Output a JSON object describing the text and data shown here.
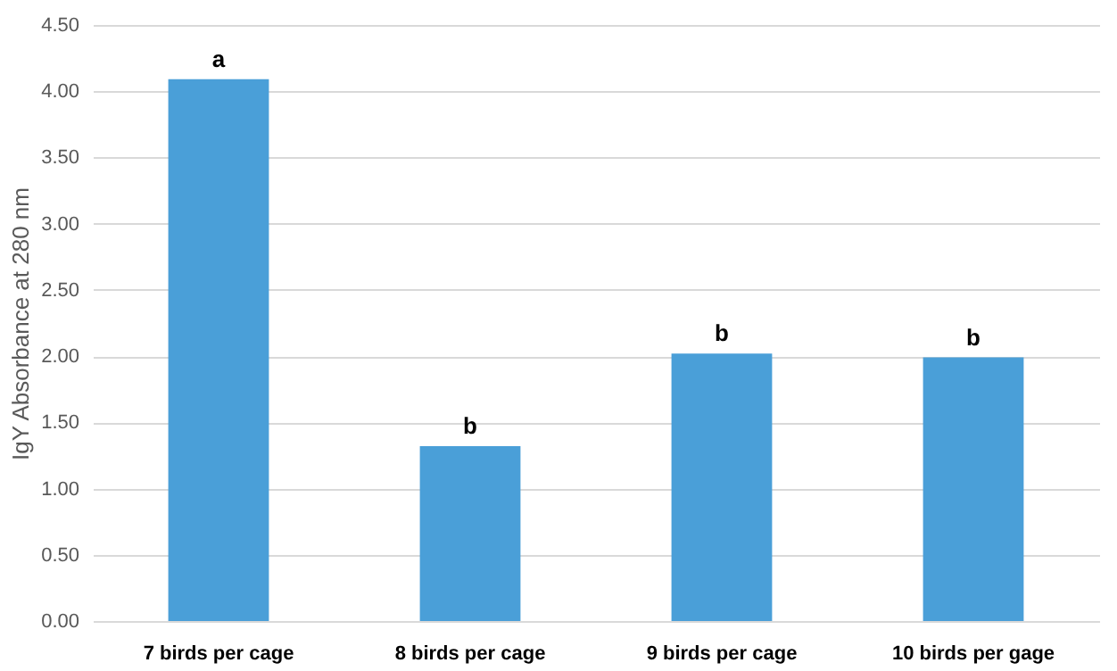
{
  "chart_data": {
    "type": "bar",
    "ylabel": "IgY Absorbance at 280 nm",
    "categories": [
      "7 birds per cage",
      "8 birds per cage",
      "9 birds per cage",
      "10 birds per gage"
    ],
    "values": [
      4.09,
      1.32,
      2.02,
      1.99
    ],
    "color": "#4a9fd8",
    "ylim": [
      0,
      4.5
    ],
    "yticks": [
      {
        "value": 0,
        "label": "0.00"
      },
      {
        "value": 0.5,
        "label": "0.50"
      },
      {
        "value": 1,
        "label": "1.00"
      },
      {
        "value": 1.5,
        "label": "1.50"
      },
      {
        "value": 2,
        "label": "2.00"
      },
      {
        "value": 2.5,
        "label": "2.50"
      },
      {
        "value": 3,
        "label": "3.00"
      },
      {
        "value": 3.5,
        "label": "3.50"
      },
      {
        "value": 4,
        "label": "4.00"
      },
      {
        "value": 4.5,
        "label": "4.50"
      }
    ],
    "grid": "y",
    "annotations": [
      "a",
      "b",
      "b",
      "b"
    ]
  }
}
